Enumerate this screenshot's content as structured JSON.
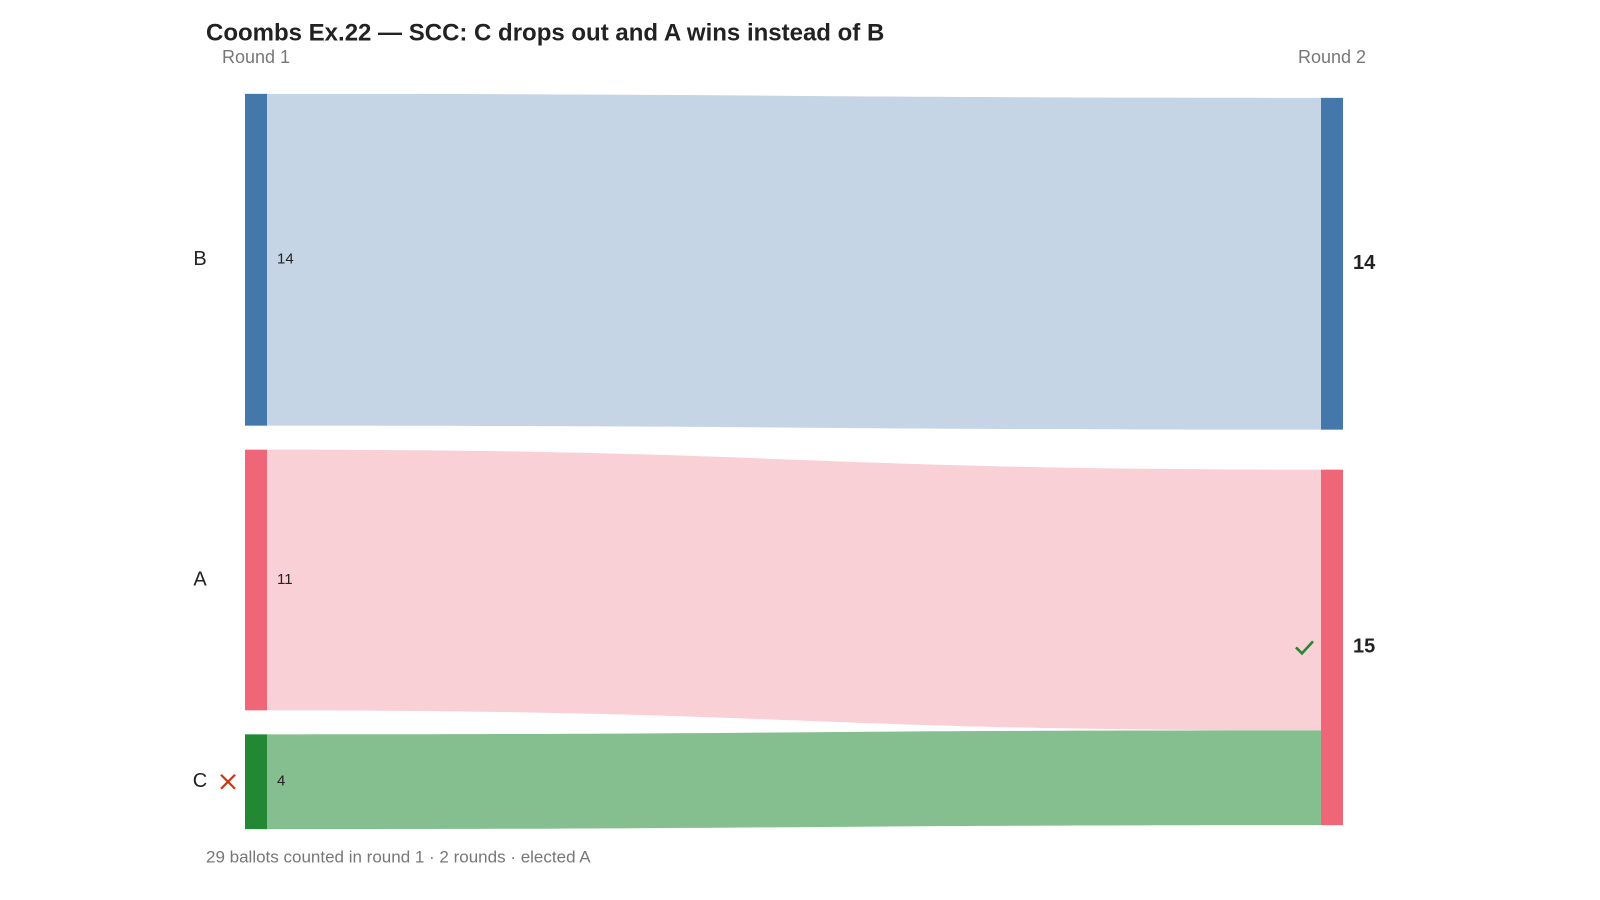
{
  "chart_data": {
    "type": "sankey",
    "title": "Coombs Ex.22 — SCC: C drops out and A wins instead of B",
    "footer": "29 ballots counted in round 1 · 2 rounds · elected A",
    "rounds": [
      {
        "label": "Round 1",
        "nodes": [
          {
            "name": "B",
            "value": 14,
            "color": "#4477aa"
          },
          {
            "name": "A",
            "value": 11,
            "color": "#ee6677"
          },
          {
            "name": "C",
            "value": 4,
            "color": "#228833",
            "status": "eliminated"
          }
        ]
      },
      {
        "label": "Round 2",
        "nodes": [
          {
            "name": "B",
            "value": 14,
            "color": "#4477aa"
          },
          {
            "name": "A",
            "value": 15,
            "color": "#ee6677",
            "status": "elected"
          }
        ]
      }
    ],
    "flows": [
      {
        "source": "B",
        "target": "B",
        "value": 14,
        "color": "#c6d5e5"
      },
      {
        "source": "A",
        "target": "A",
        "value": 11,
        "color": "#f9d0d6"
      },
      {
        "source": "C",
        "target": "A",
        "value": 4,
        "color": "#86bf8f"
      }
    ]
  }
}
